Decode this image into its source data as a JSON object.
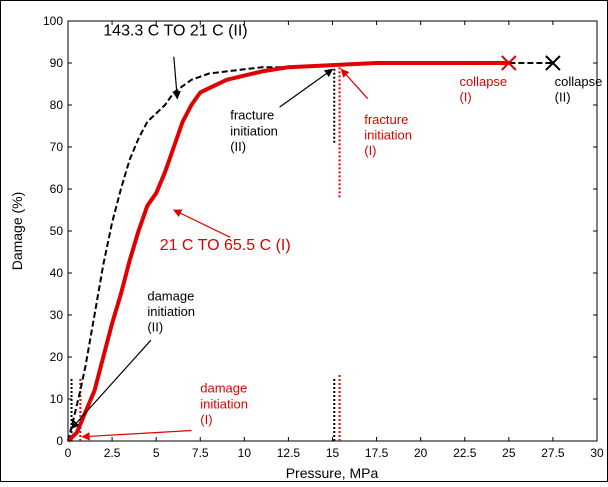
{
  "chart_data": {
    "type": "line",
    "title": "",
    "xlabel": "Pressure, MPa",
    "ylabel": "Damage (%)",
    "xlim": [
      0,
      30
    ],
    "ylim": [
      0,
      100
    ],
    "xticks": [
      0,
      2.5,
      5,
      7.5,
      10,
      12.5,
      15,
      17.5,
      20,
      22.5,
      25,
      27.5,
      30
    ],
    "xtick_labels": [
      "0",
      "2.5",
      "5",
      "7.5",
      "10",
      "12.5",
      "15",
      "17.5",
      "20",
      "22.5",
      "25",
      "27.5",
      "30"
    ],
    "yticks": [
      0,
      10,
      20,
      30,
      40,
      50,
      60,
      70,
      80,
      90,
      100
    ],
    "ytick_labels": [
      "0",
      "10",
      "20",
      "30",
      "40",
      "50",
      "60",
      "70",
      "80",
      "90",
      "100"
    ],
    "grid": false,
    "series": [
      {
        "name": "143.3 C TO 21 C (II)",
        "color": "#000000",
        "style": "dashed",
        "x": [
          0,
          0.3,
          0.7,
          1.0,
          1.5,
          2.0,
          2.5,
          3.0,
          3.5,
          4.0,
          4.5,
          5.0,
          5.5,
          6.0,
          7.0,
          8.0,
          9.0,
          10.0,
          11.0,
          12.5,
          15.0,
          17.5,
          20.0,
          22.5,
          25.0,
          27.5
        ],
        "y": [
          0,
          5,
          12,
          18,
          30,
          42,
          52,
          60,
          67,
          72,
          76,
          78,
          80,
          83,
          86,
          87.5,
          88,
          88.5,
          89,
          89,
          89.5,
          90,
          90,
          90,
          90,
          90
        ]
      },
      {
        "name": "21 C TO 65.5 C (I)",
        "color": "#e00000",
        "style": "solid",
        "x": [
          0,
          0.5,
          1.0,
          1.5,
          2.0,
          2.5,
          3.0,
          3.5,
          4.0,
          4.5,
          5.0,
          5.5,
          6.0,
          6.5,
          7.0,
          7.5,
          8.0,
          9.0,
          10.0,
          11.0,
          12.5,
          15.0,
          17.5,
          20.0,
          22.5,
          25.0
        ],
        "y": [
          0,
          2,
          7,
          12,
          20,
          28,
          35,
          43,
          50,
          56,
          59,
          64,
          70,
          76,
          80,
          83,
          84,
          86,
          87,
          88,
          89,
          89.5,
          90,
          90,
          90,
          90
        ]
      }
    ],
    "markers": [
      {
        "x": 25.0,
        "y": 90,
        "color": "#e00000"
      },
      {
        "x": 27.5,
        "y": 90,
        "color": "#000000"
      }
    ],
    "vlines": [
      {
        "x": 0.2,
        "y0": 0,
        "y1": 15,
        "color": "#000000"
      },
      {
        "x": 0.7,
        "y0": 0,
        "y1": 15,
        "color": "#e00000"
      },
      {
        "x": 15.1,
        "y0": 0,
        "y1": 15,
        "color": "#000000"
      },
      {
        "x": 15.4,
        "y0": 0,
        "y1": 16,
        "color": "#e00000"
      },
      {
        "x": 15.1,
        "y0": 71,
        "y1": 90,
        "color": "#000000"
      },
      {
        "x": 15.4,
        "y0": 58,
        "y1": 89,
        "color": "#e00000"
      }
    ],
    "annotations": [
      {
        "lines": [
          "143.3 C TO 21 C (II)"
        ],
        "color": "#000000",
        "size": 16,
        "x": 2.0,
        "y": 96.5,
        "anchor": "start",
        "arrow": [
          [
            6.0,
            91.5
          ],
          [
            6.2,
            81.5
          ]
        ]
      },
      {
        "lines": [
          "21 C TO 65.5 C (I)"
        ],
        "color": "#e00000",
        "size": 16,
        "x": 5.2,
        "y": 45.5,
        "anchor": "start",
        "arrow": [
          [
            9.2,
            48.5
          ],
          [
            6.0,
            55.0
          ]
        ]
      },
      {
        "lines": [
          "fracture",
          "initiation",
          "(II)"
        ],
        "color": "#000000",
        "size": 13,
        "x": 9.2,
        "y": 76.5,
        "anchor": "start",
        "arrow": [
          [
            12.0,
            79.5
          ],
          [
            15.0,
            88.5
          ]
        ]
      },
      {
        "lines": [
          "fracture",
          "initiation",
          "(I)"
        ],
        "color": "#e00000",
        "size": 13,
        "x": 16.8,
        "y": 75.5,
        "anchor": "start",
        "arrow": [
          [
            17.0,
            81.5
          ],
          [
            15.5,
            88.5
          ]
        ]
      },
      {
        "lines": [
          "collapse",
          "(I)"
        ],
        "color": "#e00000",
        "size": 13,
        "x": 22.2,
        "y": 84.5,
        "anchor": "start",
        "arrow": null
      },
      {
        "lines": [
          "collapse",
          "(II)"
        ],
        "color": "#000000",
        "size": 13,
        "x": 27.6,
        "y": 84.5,
        "anchor": "start",
        "arrow": null
      },
      {
        "lines": [
          "damage",
          "initiation",
          "(II)"
        ],
        "color": "#000000",
        "size": 13,
        "x": 4.5,
        "y": 33.5,
        "anchor": "start",
        "arrow": [
          [
            4.7,
            24.0
          ],
          [
            0.2,
            3.0
          ]
        ]
      },
      {
        "lines": [
          "damage",
          "initiation",
          "(I)"
        ],
        "color": "#e00000",
        "size": 13,
        "x": 7.5,
        "y": 11.5,
        "anchor": "start",
        "arrow": [
          [
            7.0,
            2.5
          ],
          [
            0.8,
            1.0
          ]
        ]
      }
    ]
  }
}
